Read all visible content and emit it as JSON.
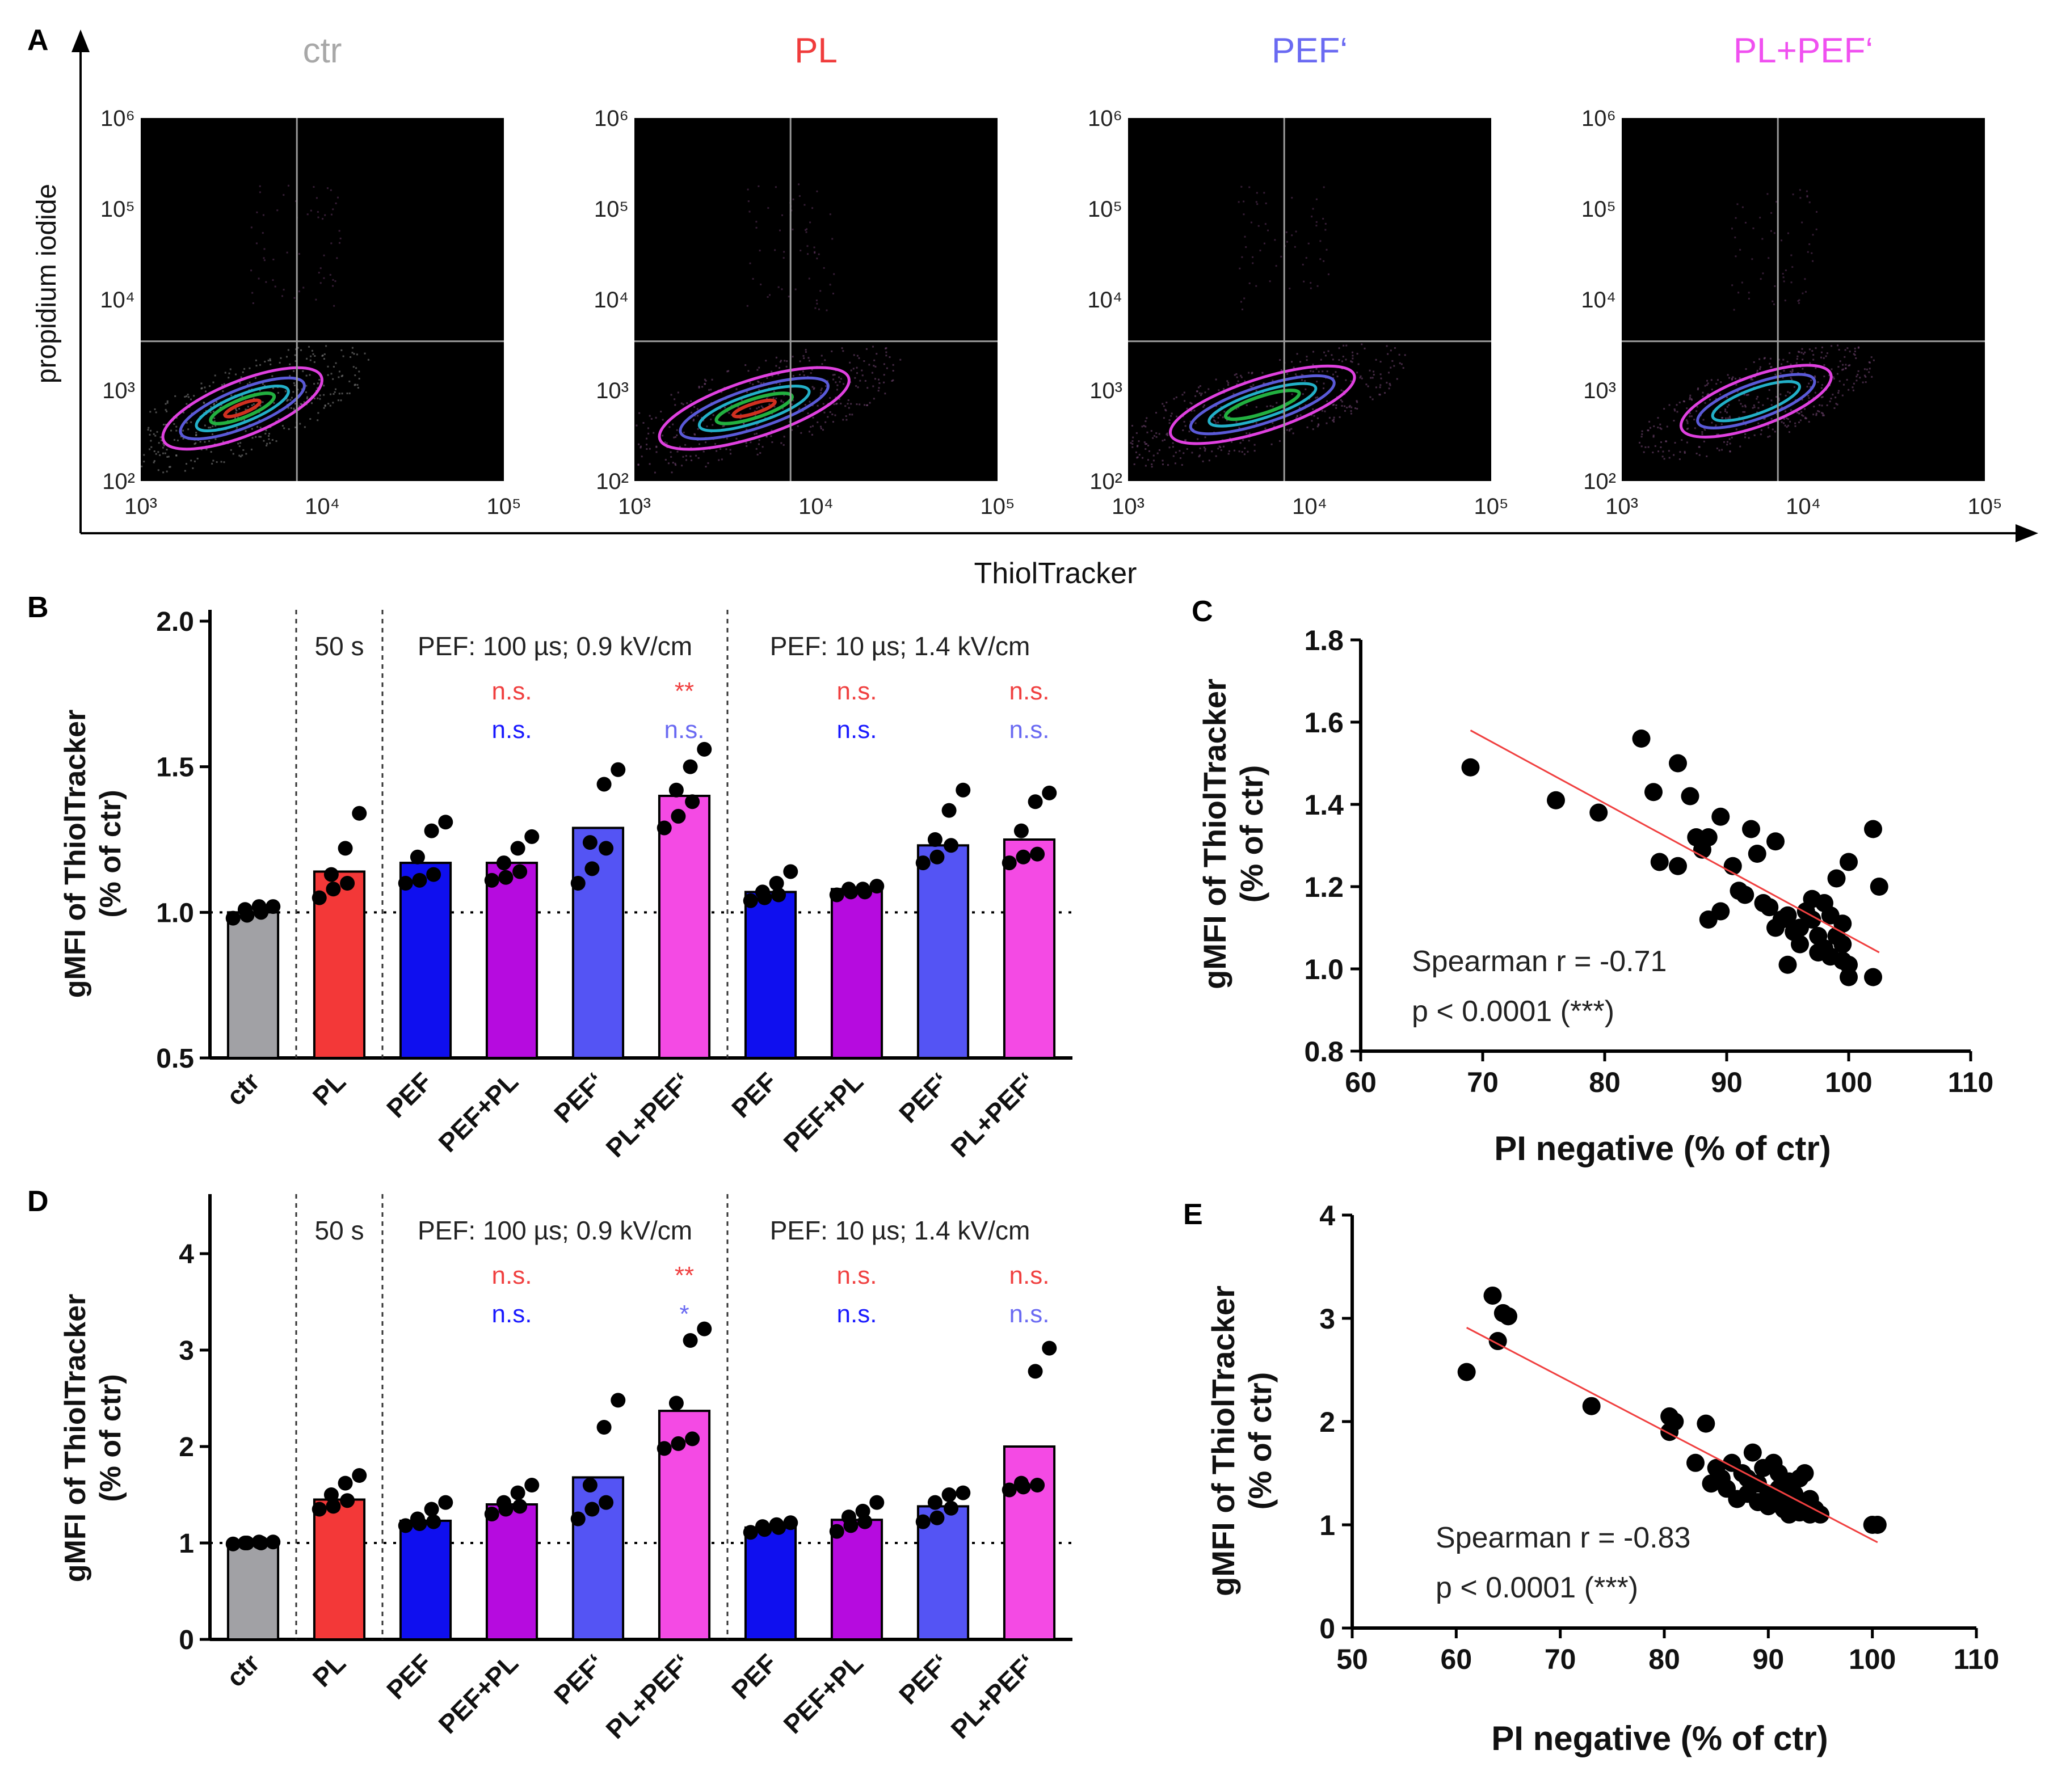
{
  "panel_labels": [
    "A",
    "B",
    "C",
    "D",
    "E"
  ],
  "flow": {
    "x_axis_label": "ThiolTracker",
    "y_axis_label": "propidium iodide",
    "x_ticks": [
      "10³",
      "10⁴",
      "10⁵"
    ],
    "y_ticks": [
      "10⁶",
      "10⁵",
      "10⁴",
      "10³",
      "10²"
    ],
    "plots": [
      {
        "title": "ctr",
        "color": "#a8a8a8"
      },
      {
        "title": "PL",
        "color": "#f03c3c"
      },
      {
        "title": "PEF‘",
        "color": "#6a6af2"
      },
      {
        "title": "PL+PEF‘",
        "color": "#f050f0"
      }
    ]
  },
  "chart_data": [
    {
      "id": "B",
      "type": "bar",
      "title": "",
      "ylabel": "gMFI of ThiolTracker\n(% of ctr)",
      "ylabel_lines": [
        "gMFI of ThiolTracker",
        "(% of ctr)"
      ],
      "ylim": [
        0.5,
        2.0
      ],
      "yticks": [
        "0.5",
        "1.0",
        "1.5",
        "2.0"
      ],
      "ytick_values": [
        0.5,
        1.0,
        1.5,
        2.0
      ],
      "categories": [
        "ctr",
        "PL",
        "PEF",
        "PEF+PL",
        "PEF'",
        "PL+PEF'",
        "PEF",
        "PEF+PL",
        "PEF'",
        "PL+PEF'"
      ],
      "colors": [
        "#a1a1a5",
        "#f33838",
        "#0f0fef",
        "#b60bdf",
        "#5454f4",
        "#f44ae4",
        "#0f0fef",
        "#b60bdf",
        "#5454f4",
        "#f44ae4"
      ],
      "values": [
        1.0,
        1.14,
        1.17,
        1.17,
        1.29,
        1.4,
        1.07,
        1.08,
        1.23,
        1.25
      ],
      "points": [
        [
          0.98,
          0.99,
          1.0,
          1.01,
          1.02,
          1.02
        ],
        [
          1.05,
          1.08,
          1.1,
          1.13,
          1.22,
          1.34
        ],
        [
          1.1,
          1.11,
          1.13,
          1.19,
          1.28,
          1.31
        ],
        [
          1.11,
          1.12,
          1.14,
          1.17,
          1.22,
          1.26
        ],
        [
          1.1,
          1.15,
          1.22,
          1.24,
          1.44,
          1.49
        ],
        [
          1.29,
          1.33,
          1.38,
          1.42,
          1.5,
          1.56
        ],
        [
          1.04,
          1.05,
          1.06,
          1.07,
          1.1,
          1.14
        ],
        [
          1.06,
          1.07,
          1.07,
          1.08,
          1.08,
          1.09
        ],
        [
          1.17,
          1.19,
          1.23,
          1.25,
          1.35,
          1.42
        ],
        [
          1.17,
          1.19,
          1.2,
          1.28,
          1.38,
          1.41
        ]
      ],
      "reference_line": 1.0,
      "group_labels": [
        "50 s",
        "PEF: 100 µs; 0.9 kV/cm",
        "PEF: 10 µs; 1.4 kV/cm"
      ],
      "significance": [
        {
          "index": 3,
          "text": "n.s.",
          "color": "#f04040",
          "row": 0
        },
        {
          "index": 3,
          "text": "n.s.",
          "color": "#1a1aff",
          "row": 1
        },
        {
          "index": 5,
          "text": "**",
          "color": "#f04040",
          "row": 0
        },
        {
          "index": 5,
          "text": "n.s.",
          "color": "#6a6af2",
          "row": 1
        },
        {
          "index": 7,
          "text": "n.s.",
          "color": "#f04040",
          "row": 0
        },
        {
          "index": 7,
          "text": "n.s.",
          "color": "#1a1aff",
          "row": 1
        },
        {
          "index": 9,
          "text": "n.s.",
          "color": "#f04040",
          "row": 0
        },
        {
          "index": 9,
          "text": "n.s.",
          "color": "#6a6af2",
          "row": 1
        }
      ]
    },
    {
      "id": "C",
      "type": "scatter",
      "title": "",
      "xlabel": "PI negative (% of ctr)",
      "ylabel": "gMFI of ThiolTracker\n(% of ctr)",
      "ylabel_lines": [
        "gMFI of ThiolTracker",
        "(% of ctr)"
      ],
      "xlim": [
        60,
        110
      ],
      "ylim": [
        0.8,
        1.8
      ],
      "xticks": [
        "60",
        "70",
        "80",
        "90",
        "100",
        "110"
      ],
      "xtick_values": [
        60,
        70,
        80,
        90,
        100,
        110
      ],
      "yticks": [
        "0.8",
        "1.0",
        "1.2",
        "1.4",
        "1.6",
        "1.8"
      ],
      "ytick_values": [
        0.8,
        1.0,
        1.2,
        1.4,
        1.6,
        1.8
      ],
      "x": [
        69,
        76,
        79.5,
        83,
        84,
        84.5,
        86,
        86,
        87,
        87.5,
        88,
        88.5,
        88.5,
        89.5,
        89.5,
        90.5,
        91,
        91.5,
        92,
        92.5,
        93,
        93.5,
        94,
        94,
        94.5,
        95,
        95,
        95.5,
        96,
        96,
        96.5,
        97,
        97,
        97.5,
        97.5,
        98,
        98,
        98.5,
        98.5,
        99,
        99,
        99.5,
        99.5,
        99.5,
        100,
        100,
        100,
        102,
        102,
        102.5
      ],
      "y": [
        1.49,
        1.41,
        1.38,
        1.56,
        1.43,
        1.26,
        1.5,
        1.25,
        1.42,
        1.32,
        1.29,
        1.12,
        1.32,
        1.14,
        1.37,
        1.25,
        1.19,
        1.18,
        1.34,
        1.28,
        1.16,
        1.15,
        1.31,
        1.1,
        1.12,
        1.13,
        1.01,
        1.09,
        1.1,
        1.06,
        1.14,
        1.12,
        1.17,
        1.08,
        1.04,
        1.16,
        1.05,
        1.13,
        1.03,
        1.22,
        1.08,
        1.02,
        1.06,
        1.11,
        0.98,
        1.26,
        1.01,
        1.34,
        0.98,
        1.2
      ],
      "fit": {
        "x": [
          69,
          102.5
        ],
        "y": [
          1.58,
          1.04
        ]
      },
      "annotation": [
        "Spearman r = -0.71",
        "p < 0.0001 (***)"
      ]
    },
    {
      "id": "D",
      "type": "bar",
      "title": "",
      "ylabel": "gMFI of ThiolTracker\n(% of ctr)",
      "ylabel_lines": [
        "gMFI of ThiolTracker",
        "(% of ctr)"
      ],
      "ylim": [
        0,
        4.5
      ],
      "yticks": [
        "0",
        "1",
        "2",
        "3",
        "4"
      ],
      "ytick_values": [
        0,
        1,
        2,
        3,
        4
      ],
      "categories": [
        "ctr",
        "PL",
        "PEF",
        "PEF+PL",
        "PEF'",
        "PL+PEF'",
        "PEF",
        "PEF+PL",
        "PEF'",
        "PL+PEF'"
      ],
      "colors": [
        "#a1a1a5",
        "#f33838",
        "#0f0fef",
        "#b60bdf",
        "#5454f4",
        "#f44ae4",
        "#0f0fef",
        "#b60bdf",
        "#5454f4",
        "#f44ae4"
      ],
      "values": [
        1.0,
        1.45,
        1.23,
        1.4,
        1.68,
        2.37,
        1.16,
        1.24,
        1.38,
        2.0
      ],
      "points": [
        [
          0.99,
          1.0,
          1.0,
          1.0,
          1.01,
          1.01
        ],
        [
          1.35,
          1.38,
          1.44,
          1.5,
          1.62,
          1.7
        ],
        [
          1.18,
          1.2,
          1.22,
          1.25,
          1.35,
          1.42
        ],
        [
          1.3,
          1.35,
          1.38,
          1.42,
          1.52,
          1.6
        ],
        [
          1.25,
          1.35,
          1.42,
          1.6,
          2.2,
          2.48
        ],
        [
          1.98,
          2.03,
          2.08,
          2.45,
          3.1,
          3.22
        ],
        [
          1.11,
          1.14,
          1.16,
          1.17,
          1.19,
          1.21
        ],
        [
          1.12,
          1.18,
          1.22,
          1.27,
          1.33,
          1.42
        ],
        [
          1.22,
          1.26,
          1.36,
          1.42,
          1.5,
          1.52
        ],
        [
          1.55,
          1.58,
          1.6,
          1.62,
          2.78,
          3.02
        ]
      ],
      "reference_line": 1.0,
      "group_labels": [
        "50 s",
        "PEF: 100 µs; 0.9 kV/cm",
        "PEF: 10 µs; 1.4 kV/cm"
      ],
      "significance": [
        {
          "index": 3,
          "text": "n.s.",
          "color": "#f04040",
          "row": 0
        },
        {
          "index": 3,
          "text": "n.s.",
          "color": "#1a1aff",
          "row": 1
        },
        {
          "index": 5,
          "text": "**",
          "color": "#f04040",
          "row": 0
        },
        {
          "index": 5,
          "text": "*",
          "color": "#6a6af2",
          "row": 1
        },
        {
          "index": 7,
          "text": "n.s.",
          "color": "#f04040",
          "row": 0
        },
        {
          "index": 7,
          "text": "n.s.",
          "color": "#1a1aff",
          "row": 1
        },
        {
          "index": 9,
          "text": "n.s.",
          "color": "#f04040",
          "row": 0
        },
        {
          "index": 9,
          "text": "n.s.",
          "color": "#6a6af2",
          "row": 1
        }
      ]
    },
    {
      "id": "E",
      "type": "scatter",
      "title": "",
      "xlabel": "PI negative (% of ctr)",
      "ylabel": "gMFI of ThiolTracker\n(% of ctr)",
      "ylabel_lines": [
        "gMFI of ThiolTracker",
        "(% of ctr)"
      ],
      "xlim": [
        50,
        110
      ],
      "ylim": [
        0,
        4
      ],
      "xticks": [
        "50",
        "60",
        "70",
        "80",
        "90",
        "100",
        "110"
      ],
      "xtick_values": [
        50,
        60,
        70,
        80,
        90,
        100,
        110
      ],
      "yticks": [
        "0",
        "1",
        "2",
        "3",
        "4"
      ],
      "ytick_values": [
        0,
        1,
        2,
        3,
        4
      ],
      "x": [
        61,
        63.5,
        64,
        64.5,
        65,
        73,
        80.5,
        81,
        80.5,
        83,
        84,
        84.5,
        85,
        85.5,
        86,
        86.5,
        87,
        87.5,
        88,
        88,
        88.5,
        89,
        89,
        89.5,
        90,
        90,
        90.5,
        91,
        91,
        91,
        91.5,
        91.5,
        92,
        92,
        92.5,
        92.5,
        93,
        93,
        93.5,
        93.5,
        94,
        94,
        94.5,
        95,
        100,
        100.5
      ],
      "y": [
        2.48,
        3.22,
        2.78,
        3.05,
        3.02,
        2.15,
        2.05,
        2.0,
        1.9,
        1.6,
        1.98,
        1.4,
        1.55,
        1.45,
        1.35,
        1.6,
        1.25,
        1.5,
        1.45,
        1.3,
        1.7,
        1.22,
        1.4,
        1.55,
        1.3,
        1.18,
        1.6,
        1.5,
        1.35,
        1.2,
        1.28,
        1.15,
        1.42,
        1.1,
        1.22,
        1.3,
        1.12,
        1.45,
        1.18,
        1.5,
        1.1,
        1.25,
        1.15,
        1.1,
        1.0,
        1.0
      ],
      "fit": {
        "x": [
          61,
          100.5
        ],
        "y": [
          2.91,
          0.83
        ]
      },
      "annotation": [
        "Spearman r = -0.83",
        "p < 0.0001 (***)"
      ]
    }
  ]
}
